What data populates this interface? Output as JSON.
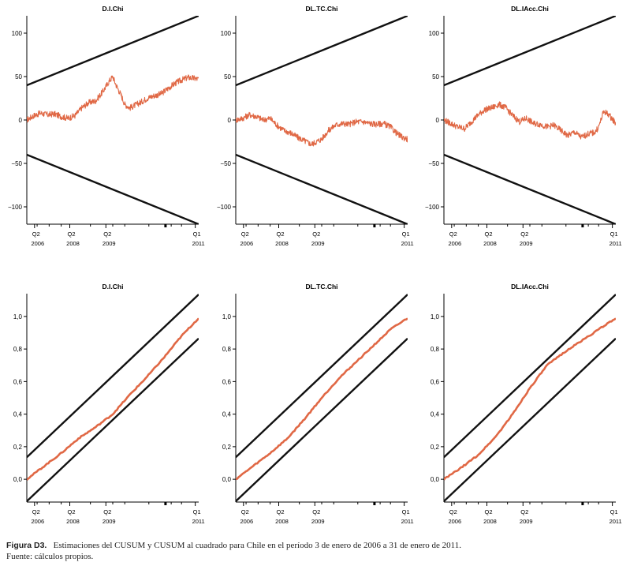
{
  "figure": {
    "label": "Figura D3.",
    "caption": "Estimaciones del CUSUM y CUSUM al cuadrado para Chile en el período 3 de enero de 2006 a 31 de enero de 2011.",
    "source": "Fuente: cálculos propios."
  },
  "colors": {
    "series": "#e06845",
    "bounds": "#111111",
    "axis": "#000000"
  },
  "chart_data": [
    {
      "type": "line",
      "panel": "cusum",
      "title": "D.I.Chi",
      "x_ticks_top": [
        "Q2",
        "Q2",
        "Q2",
        "Q1"
      ],
      "x_ticks_bottom": [
        "2006",
        "2008",
        "2009",
        "2011"
      ],
      "xlim": [
        0,
        1
      ],
      "ylim": [
        -120,
        120
      ],
      "yticks": [
        100,
        50,
        0,
        -50,
        -100
      ],
      "y_tick_labels": [
        "100",
        "50",
        "0",
        "−50",
        "−100"
      ],
      "bounds": [
        {
          "x": [
            0,
            1
          ],
          "y": [
            40,
            120
          ]
        },
        {
          "x": [
            0,
            1
          ],
          "y": [
            -40,
            -120
          ]
        }
      ],
      "series": [
        {
          "x": [
            0,
            0.04,
            0.08,
            0.12,
            0.16,
            0.2,
            0.24,
            0.28,
            0.32,
            0.36,
            0.4,
            0.44,
            0.48,
            0.5,
            0.52,
            0.55,
            0.57,
            0.6,
            0.63,
            0.66,
            0.7,
            0.74,
            0.78,
            0.82,
            0.86,
            0.9,
            0.94,
            0.97,
            1.0
          ],
          "y": [
            0,
            5,
            8,
            6,
            7,
            4,
            2,
            5,
            14,
            20,
            22,
            32,
            45,
            50,
            40,
            28,
            18,
            14,
            17,
            20,
            25,
            28,
            30,
            36,
            42,
            46,
            49,
            48,
            47
          ]
        }
      ]
    },
    {
      "type": "line",
      "panel": "cusum",
      "title": "DL.TC.Chi",
      "x_ticks_top": [
        "Q2",
        "Q2",
        "Q2",
        "Q1"
      ],
      "x_ticks_bottom": [
        "2006",
        "2008",
        "2009",
        "2011"
      ],
      "xlim": [
        0,
        1
      ],
      "ylim": [
        -120,
        120
      ],
      "yticks": [
        100,
        50,
        0,
        -50,
        -100
      ],
      "y_tick_labels": [
        "100",
        "50",
        "0",
        "−50",
        "−100"
      ],
      "bounds": [
        {
          "x": [
            0,
            1
          ],
          "y": [
            40,
            120
          ]
        },
        {
          "x": [
            0,
            1
          ],
          "y": [
            -40,
            -120
          ]
        }
      ],
      "series": [
        {
          "x": [
            0,
            0.04,
            0.08,
            0.12,
            0.16,
            0.2,
            0.24,
            0.28,
            0.32,
            0.36,
            0.4,
            0.44,
            0.5,
            0.54,
            0.58,
            0.62,
            0.66,
            0.7,
            0.74,
            0.78,
            0.82,
            0.86,
            0.9,
            0.94,
            0.97,
            1.0
          ],
          "y": [
            0,
            2,
            6,
            4,
            0,
            2,
            -6,
            -12,
            -15,
            -20,
            -24,
            -28,
            -22,
            -12,
            -6,
            -4,
            -5,
            -2,
            -2,
            -4,
            -5,
            -4,
            -8,
            -16,
            -20,
            -22
          ]
        }
      ]
    },
    {
      "type": "line",
      "panel": "cusum",
      "title": "DL.IAcc.Chi",
      "x_ticks_top": [
        "Q2",
        "Q2",
        "Q2",
        "Q1"
      ],
      "x_ticks_bottom": [
        "2006",
        "2008",
        "2009",
        "2011"
      ],
      "xlim": [
        0,
        1
      ],
      "ylim": [
        -120,
        120
      ],
      "yticks": [
        100,
        50,
        0,
        -50,
        -100
      ],
      "y_tick_labels": [
        "100",
        "50",
        "0",
        "−50",
        "−100"
      ],
      "bounds": [
        {
          "x": [
            0,
            1
          ],
          "y": [
            40,
            120
          ]
        },
        {
          "x": [
            0,
            1
          ],
          "y": [
            -40,
            -120
          ]
        }
      ],
      "series": [
        {
          "x": [
            0,
            0.04,
            0.08,
            0.12,
            0.16,
            0.2,
            0.24,
            0.28,
            0.32,
            0.36,
            0.4,
            0.44,
            0.48,
            0.52,
            0.56,
            0.6,
            0.64,
            0.68,
            0.72,
            0.76,
            0.8,
            0.84,
            0.88,
            0.9,
            0.93,
            0.96,
            1.0
          ],
          "y": [
            0,
            -4,
            -8,
            -10,
            -2,
            6,
            12,
            14,
            18,
            14,
            5,
            -2,
            2,
            -4,
            -5,
            -8,
            -6,
            -12,
            -18,
            -14,
            -20,
            -16,
            -14,
            -8,
            10,
            6,
            -4
          ]
        }
      ]
    },
    {
      "type": "line",
      "panel": "cusumsq",
      "title": "D.I.Chi",
      "x_ticks_top": [
        "Q2",
        "Q2",
        "Q2",
        "Q1"
      ],
      "x_ticks_bottom": [
        "2006",
        "2008",
        "2009",
        "2011"
      ],
      "xlim": [
        0,
        1
      ],
      "ylim": [
        -0.14,
        1.14
      ],
      "yticks": [
        1.0,
        0.8,
        0.6,
        0.4,
        0.2,
        0.0
      ],
      "y_tick_labels": [
        "1,0",
        "0,8",
        "0,6",
        "0,4",
        "0,2",
        "0,0"
      ],
      "bounds": [
        {
          "x": [
            0,
            1
          ],
          "y": [
            0.135,
            1.135
          ]
        },
        {
          "x": [
            0,
            1
          ],
          "y": [
            -0.135,
            0.865
          ]
        }
      ],
      "series": [
        {
          "x": [
            0,
            0.1,
            0.2,
            0.3,
            0.4,
            0.5,
            0.6,
            0.7,
            0.8,
            0.9,
            1.0
          ],
          "y": [
            0,
            0.08,
            0.16,
            0.25,
            0.32,
            0.4,
            0.52,
            0.63,
            0.75,
            0.88,
            0.99
          ]
        }
      ]
    },
    {
      "type": "line",
      "panel": "cusumsq",
      "title": "DL.TC.Chi",
      "x_ticks_top": [
        "Q2",
        "Q2",
        "Q2",
        "Q1"
      ],
      "x_ticks_bottom": [
        "2006",
        "2008",
        "2009",
        "2011"
      ],
      "xlim": [
        0,
        1
      ],
      "ylim": [
        -0.14,
        1.14
      ],
      "yticks": [
        1.0,
        0.8,
        0.6,
        0.4,
        0.2,
        0.0
      ],
      "y_tick_labels": [
        "1,0",
        "0,8",
        "0,6",
        "0,4",
        "0,2",
        "0,0"
      ],
      "bounds": [
        {
          "x": [
            0,
            1
          ],
          "y": [
            0.135,
            1.135
          ]
        },
        {
          "x": [
            0,
            1
          ],
          "y": [
            -0.135,
            0.865
          ]
        }
      ],
      "series": [
        {
          "x": [
            0,
            0.1,
            0.2,
            0.3,
            0.4,
            0.5,
            0.6,
            0.7,
            0.8,
            0.9,
            1.0
          ],
          "y": [
            0,
            0.08,
            0.16,
            0.25,
            0.37,
            0.5,
            0.62,
            0.72,
            0.82,
            0.92,
            0.99
          ]
        }
      ]
    },
    {
      "type": "line",
      "panel": "cusumsq",
      "title": "DL.IAcc.Chi",
      "x_ticks_top": [
        "Q2",
        "Q2",
        "Q2",
        "Q1"
      ],
      "x_ticks_bottom": [
        "2006",
        "2008",
        "2009",
        "2011"
      ],
      "xlim": [
        0,
        1
      ],
      "ylim": [
        -0.14,
        1.14
      ],
      "yticks": [
        1.0,
        0.8,
        0.6,
        0.4,
        0.2,
        0.0
      ],
      "y_tick_labels": [
        "1,0",
        "0,8",
        "0,6",
        "0,4",
        "0,2",
        "0,0"
      ],
      "bounds": [
        {
          "x": [
            0,
            1
          ],
          "y": [
            0.135,
            1.135
          ]
        },
        {
          "x": [
            0,
            1
          ],
          "y": [
            -0.135,
            0.865
          ]
        }
      ],
      "series": [
        {
          "x": [
            0,
            0.1,
            0.2,
            0.3,
            0.4,
            0.5,
            0.6,
            0.7,
            0.8,
            0.9,
            1.0
          ],
          "y": [
            0,
            0.07,
            0.15,
            0.26,
            0.4,
            0.56,
            0.7,
            0.78,
            0.85,
            0.92,
            0.99
          ]
        }
      ]
    }
  ]
}
